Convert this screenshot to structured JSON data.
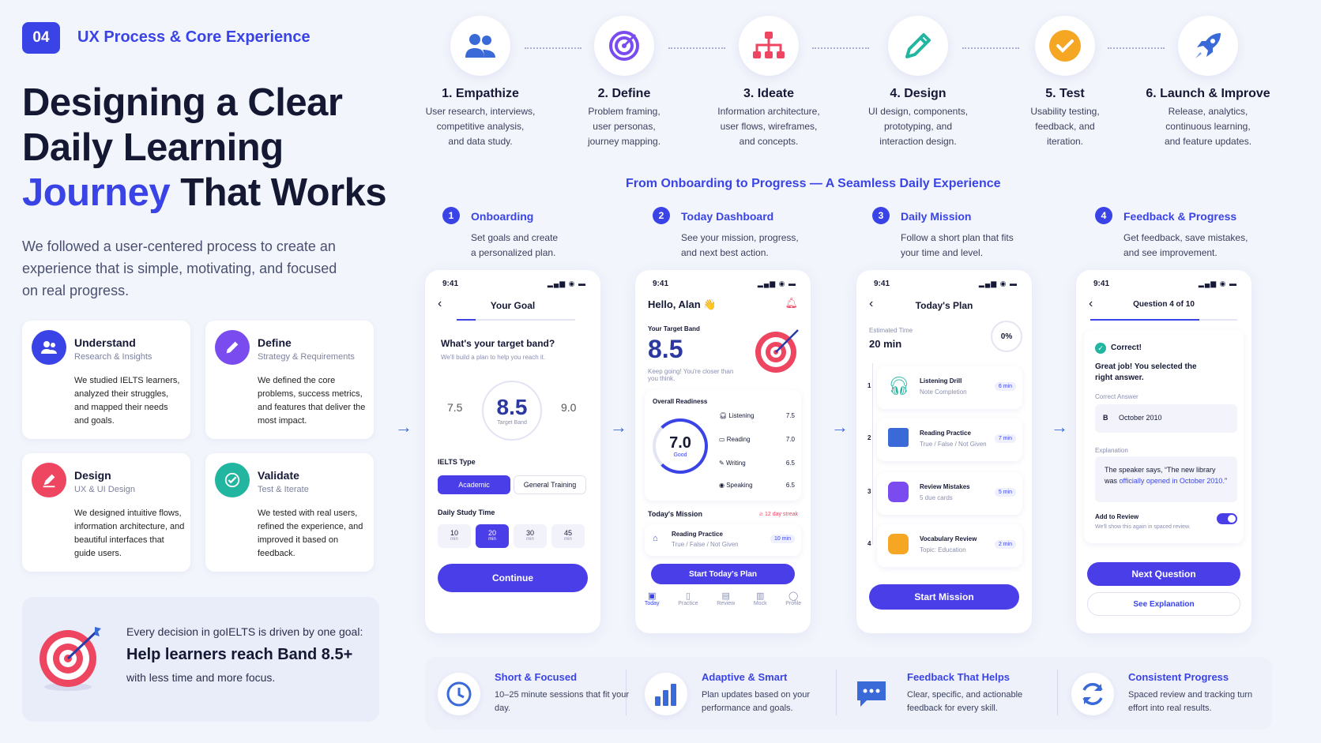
{
  "section": {
    "number": "04",
    "title": "UX Process & Core Experience"
  },
  "headline": {
    "line1": "Designing a Clear",
    "line2": "Daily Learning",
    "line3_accent": "Journey",
    "line3_rest": "That Works"
  },
  "intro": "We followed a user-centered process to create an experience that is simple, motivating, and focused on real progress.",
  "principles": [
    {
      "title": "Understand",
      "subtitle": "Research & Insights",
      "desc": "We studied IELTS learners, analyzed their struggles, and mapped their needs and goals.",
      "icon": "users-icon",
      "color": "#3a44e6"
    },
    {
      "title": "Define",
      "subtitle": "Strategy & Requirements",
      "desc": "We defined the core problems, success metrics, and features that deliver the most impact.",
      "icon": "pencil-icon",
      "color": "#7a4cf0"
    },
    {
      "title": "Design",
      "subtitle": "UX & UI Design",
      "desc": "We designed intuitive flows, information architecture, and beautiful interfaces that guide users.",
      "icon": "pen-icon",
      "color": "#ee4560"
    },
    {
      "title": "Validate",
      "subtitle": "Test & Iterate",
      "desc": "We tested with real users, refined the experience, and improved it based on feedback.",
      "icon": "check-icon",
      "color": "#22b5a0"
    }
  ],
  "goal": {
    "lead": "Every decision in goIELTS is driven by one goal:",
    "main": "Help learners reach Band 8.5+",
    "tail": "with less time and more focus.",
    "icon": "target-icon"
  },
  "process": [
    {
      "title": "1. Empathize",
      "desc": [
        "User research, interviews,",
        "competitive analysis,",
        "and data study."
      ],
      "icon": "users-icon",
      "color": "#3a6ad8"
    },
    {
      "title": "2. Define",
      "desc": [
        "Problem framing,",
        "user personas,",
        "journey mapping."
      ],
      "icon": "target-icon",
      "color": "#7a4cf0"
    },
    {
      "title": "3. Ideate",
      "desc": [
        "Information architecture,",
        "user flows, wireframes,",
        "and concepts."
      ],
      "icon": "sitemap-icon",
      "color": "#ee4560"
    },
    {
      "title": "4. Design",
      "desc": [
        "UI design, components,",
        "prototyping, and",
        "interaction design."
      ],
      "icon": "pencil-icon",
      "color": "#22b5a0"
    },
    {
      "title": "5. Test",
      "desc": [
        "Usability testing,",
        "feedback, and",
        "iteration."
      ],
      "icon": "check-icon",
      "color": "#f5a623"
    },
    {
      "title": "6. Launch & Improve",
      "desc": [
        "Release, analytics,",
        "continuous learning,",
        "and feature updates."
      ],
      "icon": "rocket-icon",
      "color": "#3a6ad8"
    }
  ],
  "journey_title": "From Onboarding to Progress — A Seamless Daily Experience",
  "stages": [
    {
      "n": "1",
      "title": "Onboarding",
      "desc": [
        "Set goals and create",
        "a personalized plan."
      ]
    },
    {
      "n": "2",
      "title": "Today Dashboard",
      "desc": [
        "See your mission, progress,",
        "and next best action."
      ]
    },
    {
      "n": "3",
      "title": "Daily Mission",
      "desc": [
        "Follow a short plan that fits",
        "your time and level."
      ]
    },
    {
      "n": "4",
      "title": "Feedback & Progress",
      "desc": [
        "Get feedback, save mistakes,",
        "and see improvement."
      ]
    }
  ],
  "status": {
    "time": "9:41",
    "signal": "▂▄▆ ◉ ▬"
  },
  "phone1": {
    "header": "Your Goal",
    "q": "What's your target band?",
    "sub": "We'll build a plan to help you reach it.",
    "left": "7.5",
    "band": "8.5",
    "band_label": "Target Band",
    "right": "9.0",
    "type_label": "IELTS Type",
    "types": [
      "Academic",
      "General Training"
    ],
    "time_label": "Daily Study Time",
    "times": [
      {
        "v": "10",
        "u": "min"
      },
      {
        "v": "20",
        "u": "min"
      },
      {
        "v": "30",
        "u": "min"
      },
      {
        "v": "45",
        "u": "min"
      }
    ],
    "cta": "Continue"
  },
  "phone2": {
    "greet": "Hello, Alan 👋",
    "target_label": "Your Target Band",
    "band": "8.5",
    "note": "Keep going! You're closer than you think.",
    "readiness_label": "Overall Readiness",
    "score": "7.0",
    "score_label": "Good",
    "skills": [
      {
        "name": "Listening",
        "v": "7.5"
      },
      {
        "name": "Reading",
        "v": "7.0"
      },
      {
        "name": "Writing",
        "v": "6.5"
      },
      {
        "name": "Speaking",
        "v": "6.5"
      }
    ],
    "mission_label": "Today's Mission",
    "streak": "12 day streak",
    "task_title": "Reading Practice",
    "task_sub": "True / False / Not Given",
    "task_time": "10 min",
    "cta": "Start Today's Plan",
    "nav": [
      "Today",
      "Practice",
      "Review",
      "Mock",
      "Profile"
    ]
  },
  "phone3": {
    "header": "Today's Plan",
    "est_label": "Estimated Time",
    "est": "20 min",
    "pct": "0%",
    "tasks": [
      {
        "n": "1",
        "title": "Listening Drill",
        "sub": "Note Completion",
        "time": "6 min",
        "color": "#22b5a0"
      },
      {
        "n": "2",
        "title": "Reading Practice",
        "sub": "True / False / Not Given",
        "time": "7 min",
        "color": "#3a6ad8"
      },
      {
        "n": "3",
        "title": "Review Mistakes",
        "sub": "5 due cards",
        "time": "5 min",
        "color": "#7a4cf0"
      },
      {
        "n": "4",
        "title": "Vocabulary Review",
        "sub": "Topic: Education",
        "time": "2 min",
        "color": "#f5a623"
      }
    ],
    "cta": "Start Mission"
  },
  "phone4": {
    "header": "Question 4 of 10",
    "correct": "Correct!",
    "msg": "Great job! You selected the right answer.",
    "ans_label": "Correct Answer",
    "ans_letter": "B",
    "ans": "October 2010",
    "exp_label": "Explanation",
    "exp_a": "The speaker says, “The new library was ",
    "exp_b": "officially opened in October 2010.",
    "exp_c": "”",
    "add": "Add to Review",
    "add_sub": "We'll show this again in spaced review.",
    "cta": "Next Question",
    "cta2": "See Explanation"
  },
  "features": [
    {
      "title": "Short & Focused",
      "desc": "10–25 minute sessions that fit your day.",
      "icon": "clock-icon"
    },
    {
      "title": "Adaptive & Smart",
      "desc": "Plan updates based on your performance and goals.",
      "icon": "bar-chart-icon"
    },
    {
      "title": "Feedback That Helps",
      "desc": "Clear, specific, and actionable feedback for every skill.",
      "icon": "chat-icon"
    },
    {
      "title": "Consistent Progress",
      "desc": "Spaced review and tracking turn effort into real results.",
      "icon": "refresh-icon"
    }
  ]
}
